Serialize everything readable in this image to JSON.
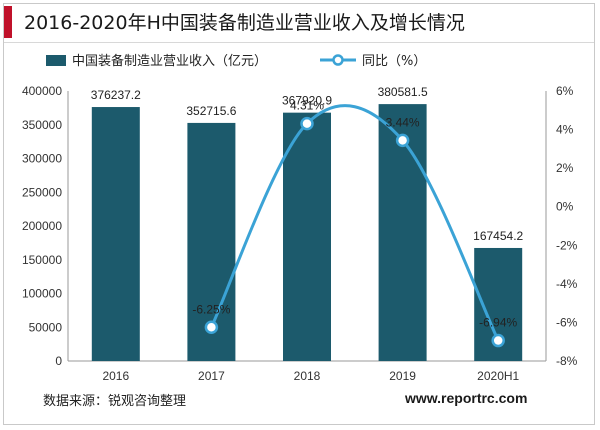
{
  "header": {
    "title": "2016-2020年H中国装备制造业营业收入及增长情况"
  },
  "footer": {
    "source": "数据来源：锐观咨询整理",
    "website": "www.reportrc.com"
  },
  "colors": {
    "bar": "#1c5a6c",
    "line": "#3ba3d6",
    "accent": "#c0112a"
  },
  "chart_data": {
    "type": "bar",
    "categories": [
      "2016",
      "2017",
      "2018",
      "2019",
      "2020H1"
    ],
    "series": [
      {
        "name": "中国装备制造业营业收入（亿元）",
        "type": "bar",
        "axis": "left",
        "values": [
          376237.2,
          352715.6,
          367920.9,
          380581.5,
          167454.2
        ],
        "labels": [
          "376237.2",
          "352715.6",
          "367920.9",
          "380581.5",
          "167454.2"
        ]
      },
      {
        "name": "同比（%）",
        "type": "line",
        "axis": "right",
        "values": [
          null,
          -6.25,
          4.31,
          3.44,
          -6.94
        ],
        "labels": [
          "",
          "-6.25%",
          "4.31%",
          "3.44%",
          "-6.94%"
        ]
      }
    ],
    "y_left": {
      "min": 0,
      "max": 400000,
      "ticks": [
        "0",
        "50000",
        "100000",
        "150000",
        "200000",
        "250000",
        "300000",
        "350000",
        "400000"
      ]
    },
    "y_right": {
      "min": -8,
      "max": 6,
      "ticks": [
        "-8%",
        "-6%",
        "-4%",
        "-2%",
        "0%",
        "2%",
        "4%",
        "6%"
      ]
    },
    "legend": {
      "position": "top"
    },
    "grid": false
  }
}
